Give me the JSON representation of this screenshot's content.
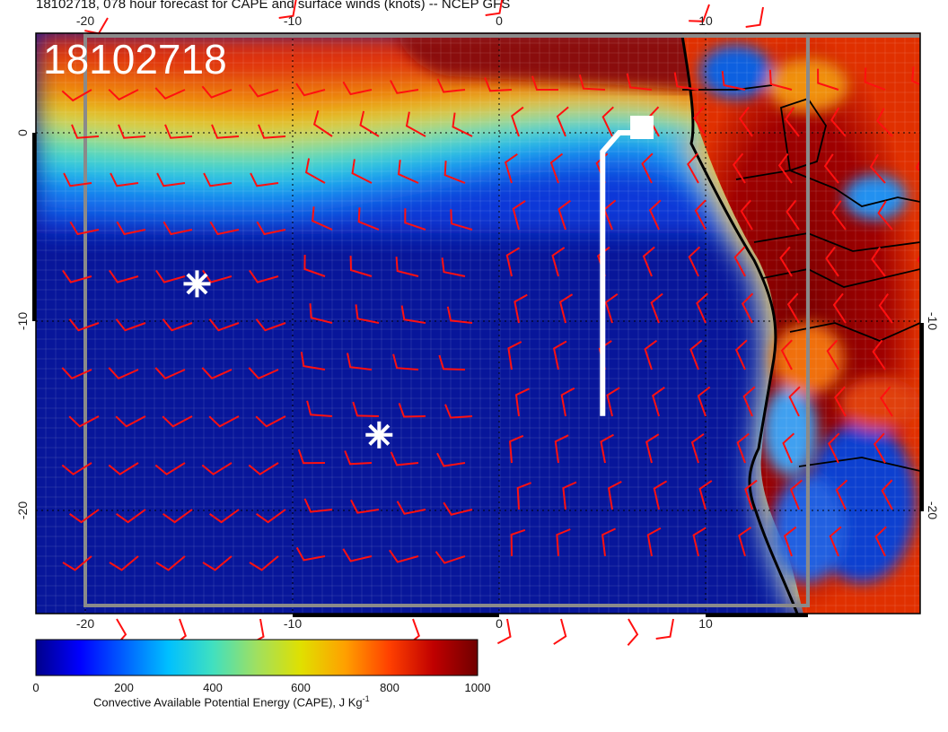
{
  "title": "18102718, 078 hour forecast for CAPE and surface winds (knots) -- NCEP GFS",
  "stamp": "18102718",
  "lon_ticks_top": [
    "-20",
    "-10",
    "0",
    "10"
  ],
  "lon_ticks_bottom": [
    "-20",
    "-10",
    "0",
    "10"
  ],
  "lat_ticks_left": [
    "0",
    "-10",
    "-20"
  ],
  "lat_ticks_right": [
    "-10",
    "-20"
  ],
  "colorbar": {
    "ticks": [
      "0",
      "200",
      "400",
      "600",
      "800",
      "1000"
    ],
    "caption": "Convective Available Potential Energy (CAPE), J Kg",
    "caption_sup": "-1",
    "colors": [
      "#00008b",
      "#0000ff",
      "#0060ff",
      "#00c0ff",
      "#40e0c0",
      "#a0e060",
      "#e0e000",
      "#ffa000",
      "#ff4000",
      "#c00000",
      "#700000"
    ]
  },
  "markers": [
    {
      "name": "asterisk-west",
      "lon": -14.6,
      "lat": -8.0
    },
    {
      "name": "asterisk-south",
      "lon": -5.8,
      "lat": -16.0
    }
  ],
  "flight_track": {
    "lon": [
      5.0,
      5.0,
      5.8,
      6.9
    ],
    "lat": [
      -15.0,
      -1.0,
      0.0,
      0.0
    ]
  }
}
